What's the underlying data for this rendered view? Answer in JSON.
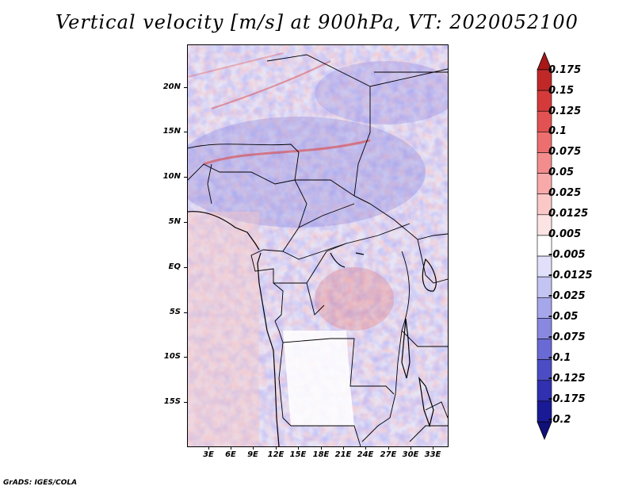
{
  "title": "Vertical velocity [m/s] at 900hPa, VT: 2020052100",
  "credit": "GrADS: IGES/COLA",
  "map": {
    "y_ticks": [
      "20N",
      "15N",
      "10N",
      "5N",
      "EQ",
      "5S",
      "10S",
      "15S"
    ],
    "x_ticks": [
      "3E",
      "6E",
      "9E",
      "12E",
      "15E",
      "18E",
      "21E",
      "24E",
      "27E",
      "30E",
      "33E"
    ]
  },
  "colorbar": {
    "labels": [
      "0.175",
      "0.15",
      "0.125",
      "0.1",
      "0.075",
      "0.05",
      "0.025",
      "0.0125",
      "0.005",
      "-0.005",
      "-0.0125",
      "-0.025",
      "-0.05",
      "-0.075",
      "-0.1",
      "-0.125",
      "-0.175",
      "-0.2"
    ],
    "colors": [
      "#a81818",
      "#c02828",
      "#d43a3a",
      "#e25252",
      "#ec6e6e",
      "#f38c8c",
      "#f8aaaa",
      "#fbc8c8",
      "#fde4e4",
      "#ffffff",
      "#e0e0fa",
      "#c4c4f2",
      "#a6a6ea",
      "#8888e0",
      "#6a6ad4",
      "#4c4cc4",
      "#3030b0",
      "#1a1a96",
      "#10107a"
    ]
  }
}
